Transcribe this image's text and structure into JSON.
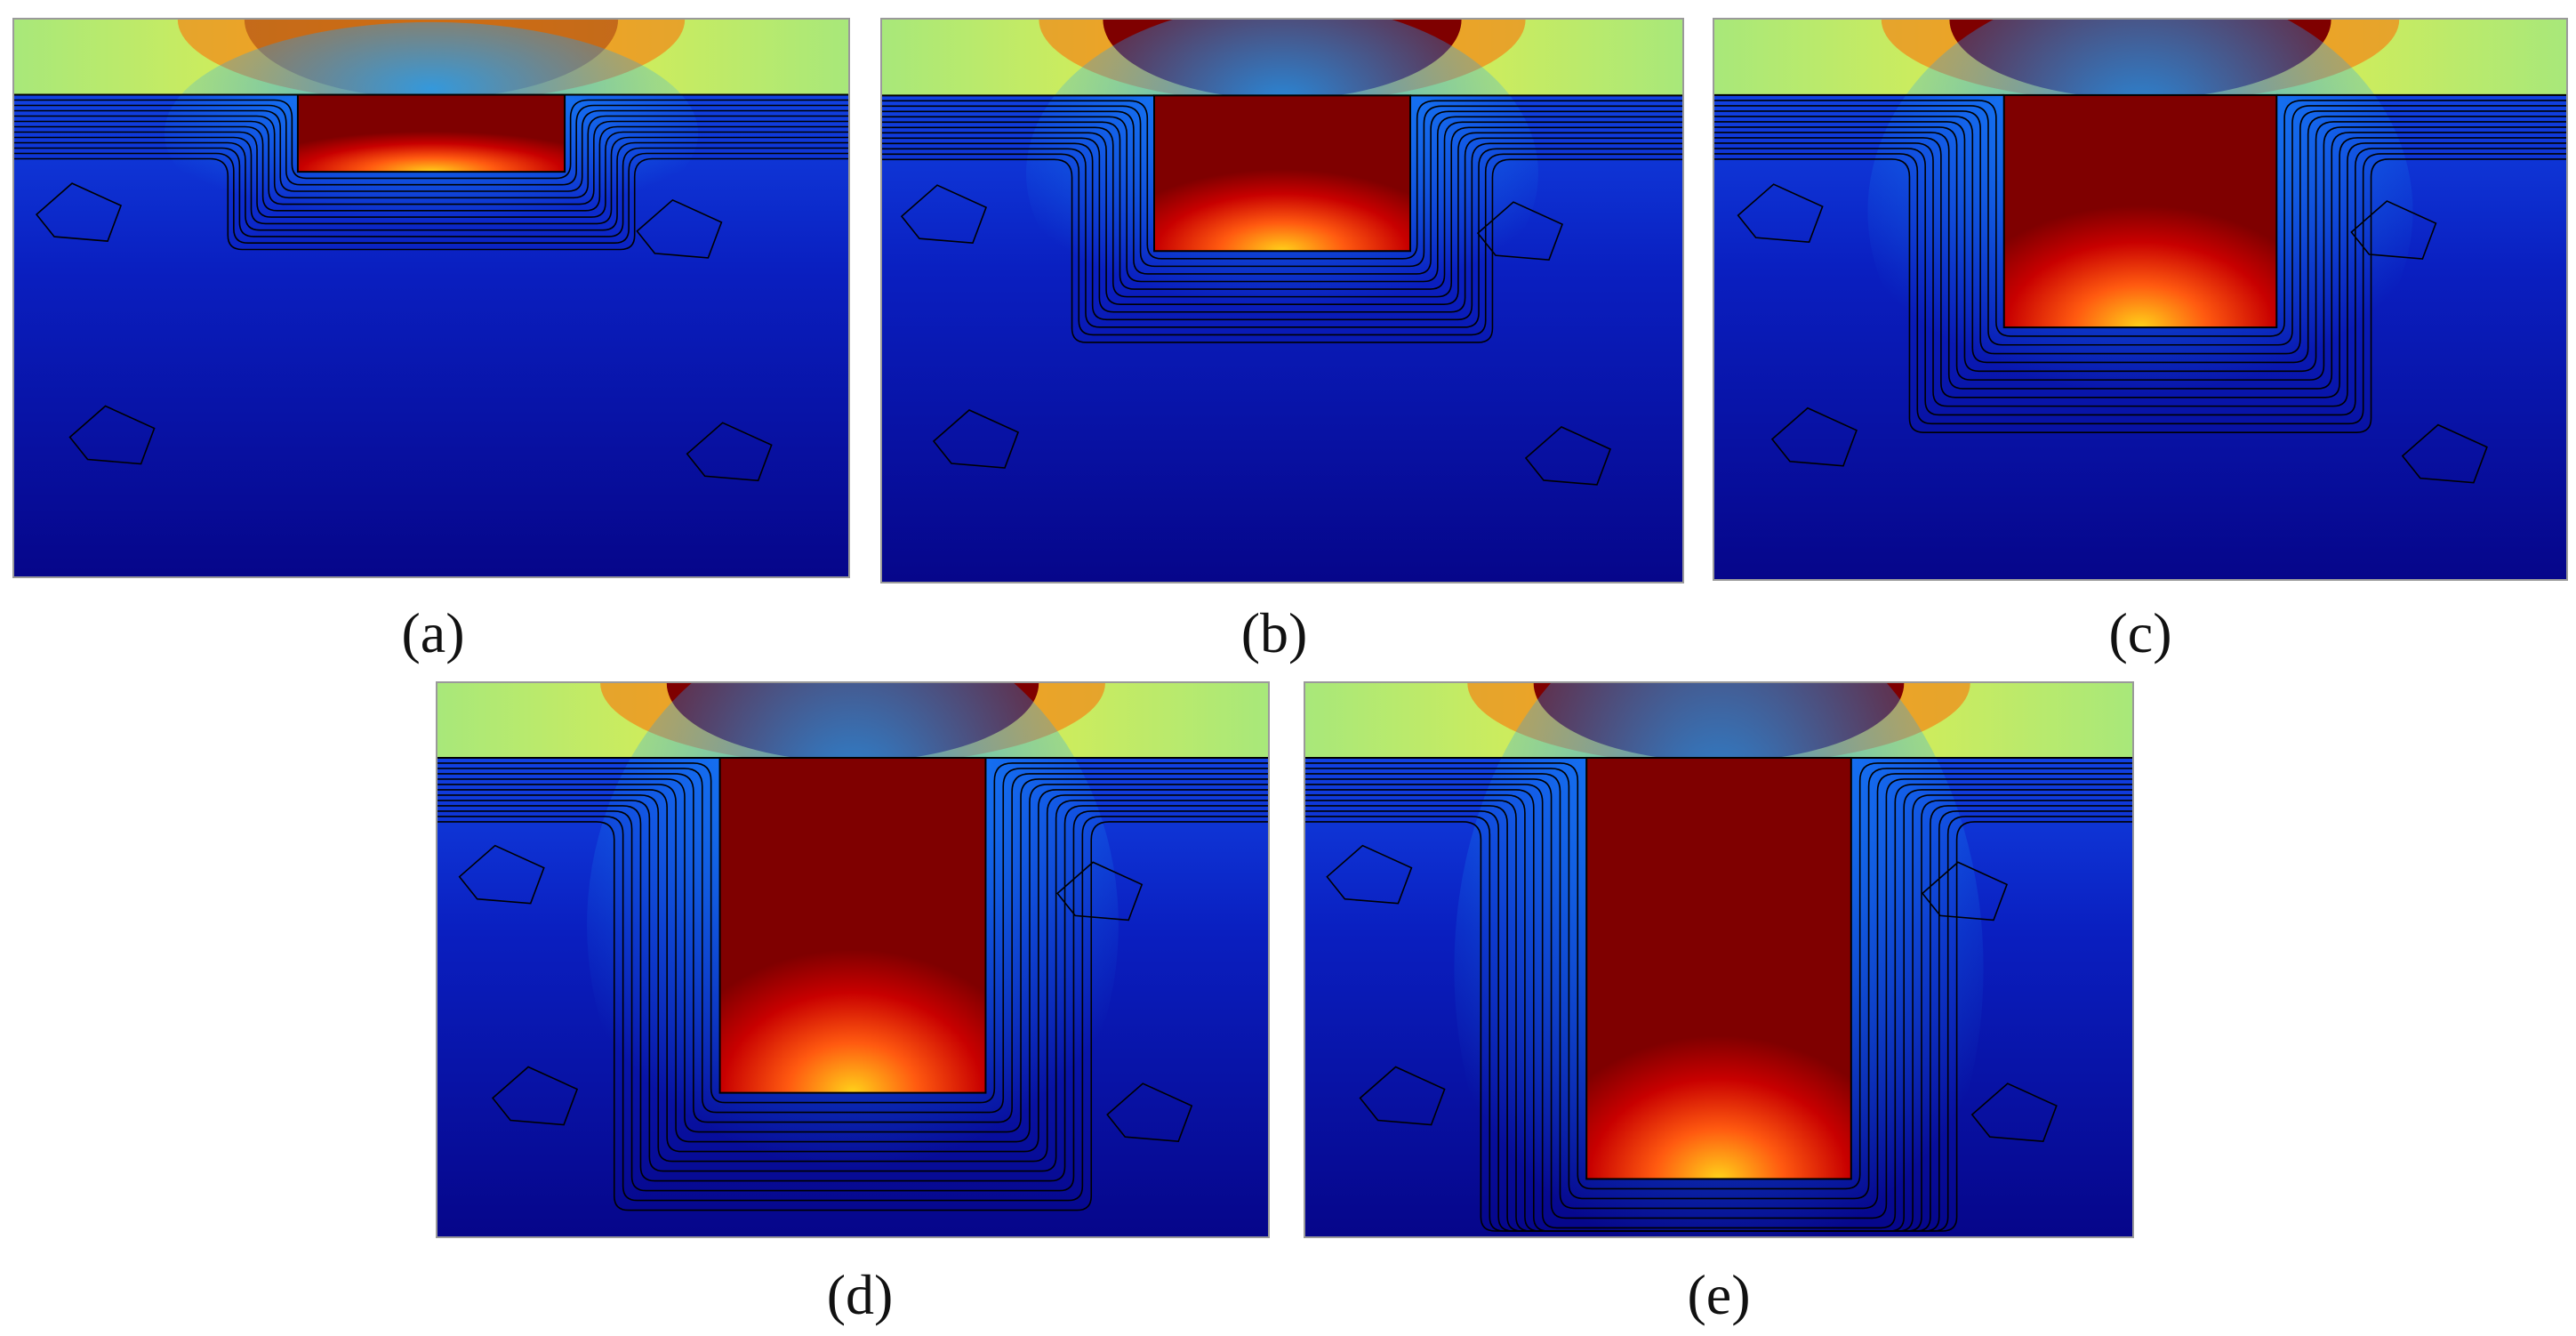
{
  "panels": [
    {
      "id": "a",
      "caption": "(a)",
      "depth": 0.16
    },
    {
      "id": "b",
      "caption": "(b)",
      "depth": 0.32
    },
    {
      "id": "c",
      "caption": "(c)",
      "depth": 0.48
    },
    {
      "id": "d",
      "caption": "(d)",
      "depth": 0.7
    },
    {
      "id": "e",
      "caption": "(e)",
      "depth": 0.88
    }
  ],
  "colors": {
    "background": "#ffffff",
    "field_low": "#06068a",
    "field_mid": "#1450f0",
    "surface_top": "#a8e87a",
    "core_hot": "#7f0000",
    "contour": "#000000"
  }
}
